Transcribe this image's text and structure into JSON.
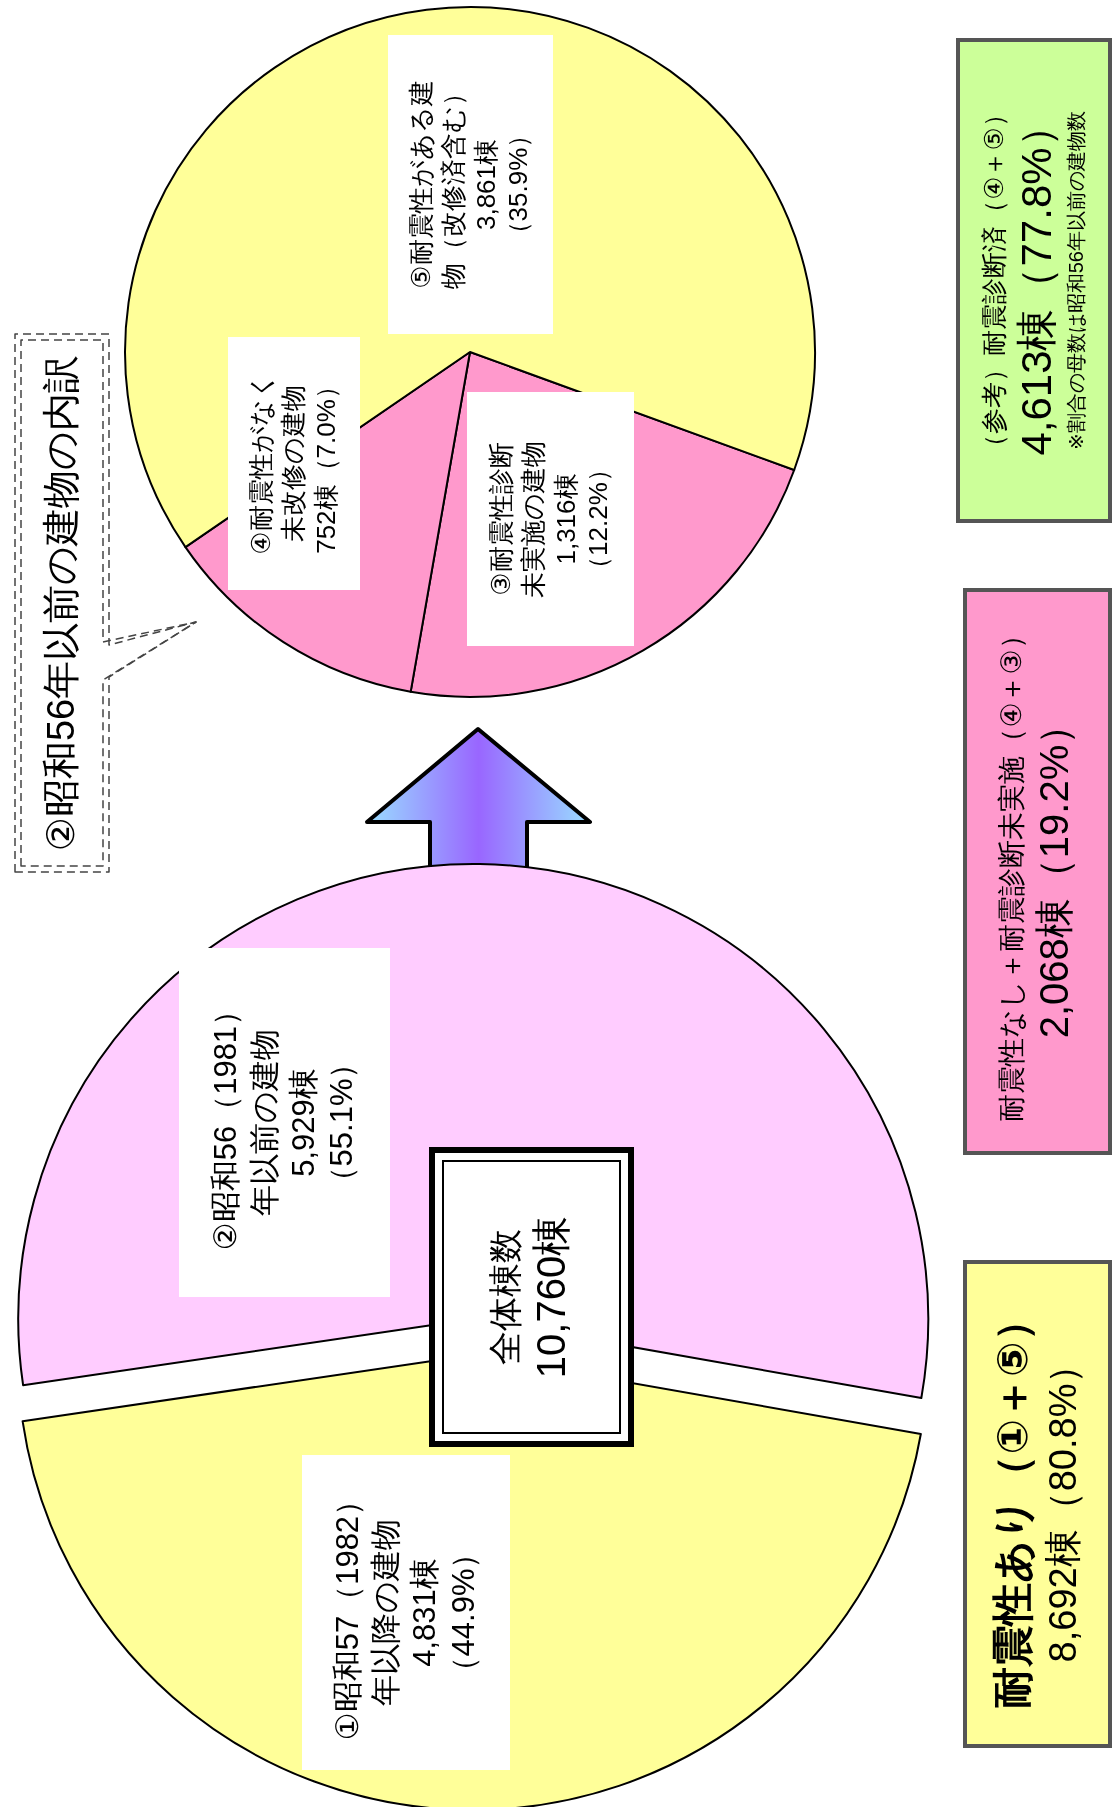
{
  "chart_data": [
    {
      "type": "pie",
      "categories": [
        "①昭和57（1982）年以降の建物",
        "②昭和56（1981）年以前の建物"
      ],
      "values": [
        4831,
        5929
      ],
      "colors": [
        "#ffff99",
        "#ffccff"
      ],
      "value_labels": [
        "4,831棟（44.9%）",
        "5,929棟（55.1%）"
      ],
      "annotations": [
        "全体棟数\n10,760棟"
      ]
    },
    {
      "type": "pie",
      "title": "②昭和56年以前の建物の内訳",
      "categories": [
        "③耐震性診断未実施の建物",
        "④耐震性がなく未改修の建物",
        "⑤耐震性がある建物（改修済含む）"
      ],
      "values": [
        1316,
        752,
        3861
      ],
      "colors": [
        "#ff99cc",
        "#ff99cc",
        "#ffff99"
      ],
      "value_labels": [
        "1,316棟（12.2%）",
        "752棟（7.0%）",
        "3,861棟（35.9%）"
      ]
    },
    {
      "type": "other",
      "annotations": [
        "耐震性あり（①＋⑤）\n8,692棟（80.8%）",
        "耐震性なし＋耐震診断未実施（④＋③）\n2,068棟（19.2%）",
        "（参考）耐震診断済（④＋⑤）\n4,613棟（77.8%）\n※割合の母数は昭和56年以前の建物数"
      ]
    }
  ]
}
